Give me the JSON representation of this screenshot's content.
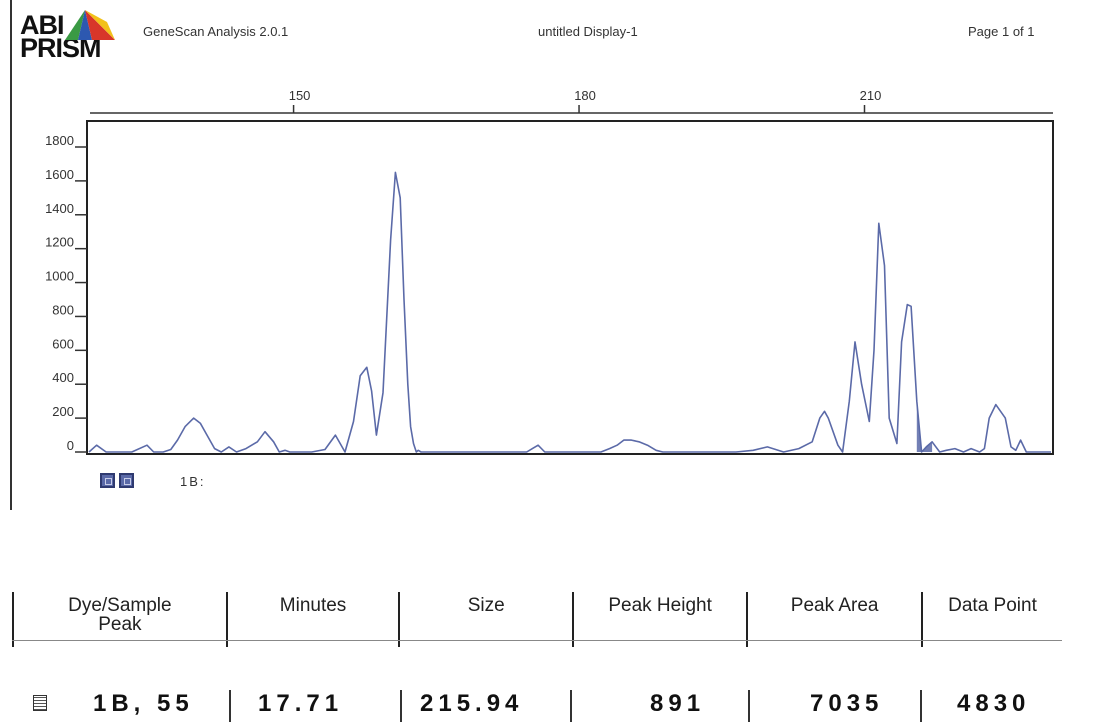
{
  "header": {
    "logo_line1": "ABI",
    "logo_line2": "PRISM",
    "app_name": "GeneScan Analysis 2.0.1",
    "document_title": "untitled Display-1",
    "page_label": "Page 1 of 1"
  },
  "colors": {
    "trace": "#5b6aa8",
    "logo_red": "#d8362a",
    "logo_yellow": "#f2c11a",
    "logo_green": "#3a9a44",
    "logo_blue": "#2d58b0"
  },
  "dye_panel": {
    "label": "1B:"
  },
  "chart_data": {
    "type": "line",
    "title": "",
    "xlabel": "",
    "ylabel": "",
    "xlim": [
      128.5,
      229.6
    ],
    "ylim": [
      0,
      1800
    ],
    "x_ticks": [
      150,
      180,
      210
    ],
    "y_ticks": [
      0,
      200,
      400,
      600,
      800,
      1000,
      1200,
      1400,
      1600,
      1800
    ],
    "grid": false,
    "filled_peak_x": 216.0,
    "series": [
      {
        "name": "",
        "x": [
          128.5,
          129.3,
          130.3,
          133,
          134.6,
          135.3,
          136.3,
          137.1,
          137.8,
          138.6,
          139.5,
          140.2,
          140.9,
          141.7,
          142.4,
          143.2,
          144.0,
          145.0,
          146.2,
          147.0,
          147.9,
          148.5,
          149.1,
          149.6,
          150.4,
          151.9,
          153.3,
          154.4,
          155.4,
          156.3,
          157.0,
          157.7,
          158.2,
          158.7,
          159.4,
          160.2,
          160.7,
          161.2,
          161.6,
          162.0,
          162.3,
          162.6,
          162.9,
          163.1,
          163.4,
          163.7,
          164.2,
          164.9,
          165.5,
          166.5,
          174.5,
          175.1,
          175.7,
          176.4,
          182.3,
          183.2,
          184.0,
          184.7,
          185.5,
          186.3,
          187.2,
          188.1,
          188.8,
          196.5,
          198.3,
          199.8,
          201.5,
          203.1,
          204.5,
          205.3,
          205.8,
          206.2,
          207.2,
          207.7,
          208.4,
          209.0,
          209.7,
          210.5,
          211.0,
          211.5,
          212.1,
          212.6,
          213.4,
          213.9,
          214.5,
          214.9,
          215.5,
          216.0,
          216.5,
          217.1,
          217.9,
          218.6,
          219.5,
          220.4,
          221.2,
          222.1,
          222.6,
          223.1,
          223.8,
          224.8,
          225.4,
          225.9,
          226.4,
          227.0,
          229.6
        ],
        "y": [
          0,
          40,
          0,
          0,
          40,
          0,
          0,
          15,
          70,
          150,
          200,
          170,
          100,
          20,
          0,
          30,
          0,
          20,
          60,
          120,
          60,
          0,
          10,
          0,
          0,
          0,
          15,
          100,
          0,
          180,
          450,
          500,
          360,
          100,
          350,
          1250,
          1650,
          1500,
          900,
          400,
          150,
          50,
          0,
          10,
          0,
          0,
          0,
          0,
          0,
          0,
          0,
          20,
          40,
          0,
          0,
          20,
          40,
          70,
          70,
          60,
          40,
          10,
          0,
          0,
          10,
          30,
          0,
          20,
          60,
          200,
          240,
          200,
          40,
          0,
          300,
          650,
          400,
          180,
          600,
          1350,
          1100,
          200,
          50,
          650,
          870,
          860,
          300,
          0,
          30,
          60,
          0,
          10,
          20,
          0,
          20,
          0,
          20,
          200,
          280,
          200,
          30,
          10,
          70,
          0,
          0
        ]
      }
    ]
  },
  "table": {
    "columns": [
      "Dye/Sample Peak",
      "Minutes",
      "Size",
      "Peak Height",
      "Peak Area",
      "Data Point"
    ],
    "rows": [
      [
        "1B, 55",
        "17.71",
        "215.94",
        "891",
        "7035",
        "4830"
      ]
    ]
  }
}
